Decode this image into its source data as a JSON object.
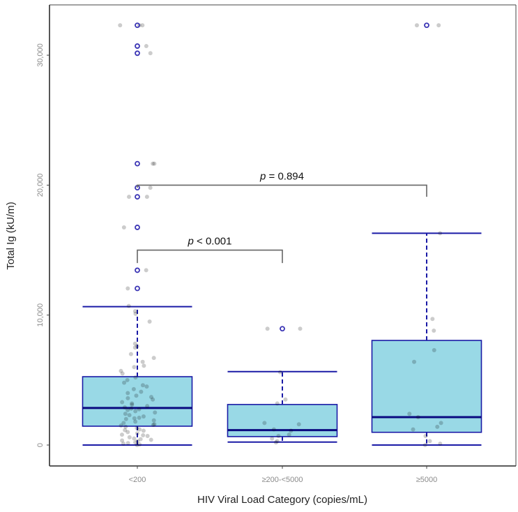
{
  "chart_data": {
    "type": "box",
    "title": "",
    "xlabel": "HIV Viral Load Category (copies/mL)",
    "ylabel": "Total Ig (kU/m)",
    "ylim": [
      -1500,
      33500
    ],
    "yticks": [
      0,
      10000,
      20000,
      30000
    ],
    "ytick_labels": [
      "0",
      "10,000",
      "20,000",
      "30,000"
    ],
    "grid": false,
    "categories": [
      "<200",
      "≥200-<5000",
      "≥5000"
    ],
    "boxes": [
      {
        "whisker_low": 0,
        "q1": 1450,
        "median": 2850,
        "q3": 5260,
        "whisker_high": 10650,
        "outliers": [
          12050,
          13450,
          16750,
          19100,
          19800,
          21650,
          30150,
          30700,
          32300
        ]
      },
      {
        "whisker_low": 230,
        "q1": 650,
        "median": 1150,
        "q3": 3120,
        "whisker_high": 5650,
        "outliers": [
          8950
        ]
      },
      {
        "whisker_low": 0,
        "q1": 980,
        "median": 2150,
        "q3": 8050,
        "whisker_high": 16300,
        "outliers": [
          32300
        ]
      }
    ],
    "points": [
      [
        0,
        50,
        100,
        150,
        200,
        300,
        350,
        400,
        450,
        500,
        600,
        700,
        750,
        800,
        900,
        1000,
        1100,
        1150,
        1200,
        1300,
        1400,
        1500,
        1550,
        1600,
        1700,
        1800,
        1900,
        2000,
        2050,
        2100,
        2200,
        2300,
        2400,
        2500,
        2600,
        2700,
        2750,
        2800,
        2900,
        3000,
        3100,
        3200,
        3300,
        3500,
        3600,
        3700,
        3800,
        4000,
        4100,
        4300,
        4500,
        4600,
        4800,
        5000,
        5200,
        5500,
        5700,
        6000,
        6100,
        6400,
        6700,
        7000,
        7500,
        7600,
        7800,
        9500,
        10100,
        10300,
        10700,
        12050,
        13450,
        16750,
        19100,
        19100,
        19800,
        21650,
        21650,
        30150,
        30700,
        32300,
        32300,
        32300
      ],
      [
        200,
        300,
        500,
        700,
        800,
        1100,
        1200,
        1600,
        1700,
        3200,
        3500,
        5600,
        8950,
        8950
      ],
      [
        0,
        100,
        300,
        700,
        1200,
        1400,
        1700,
        2150,
        2400,
        6400,
        7300,
        8800,
        9700,
        16300,
        32300,
        32300
      ]
    ],
    "comparisons": [
      {
        "groups": [
          "<200",
          "≥200-<5000"
        ],
        "label_italic": "p",
        "label_rest": " < 0.001",
        "y": 15000
      },
      {
        "groups": [
          "<200",
          "≥5000"
        ],
        "label_italic": "p",
        "label_rest": " = 0.894",
        "y": 20000
      }
    ],
    "colors": {
      "box_fill": "#99d9e6",
      "box_stroke": "#1a1aa6",
      "median": "#0a0a80",
      "outlier": "#3b35b5",
      "point": "#000000",
      "bracket": "#666666"
    }
  }
}
